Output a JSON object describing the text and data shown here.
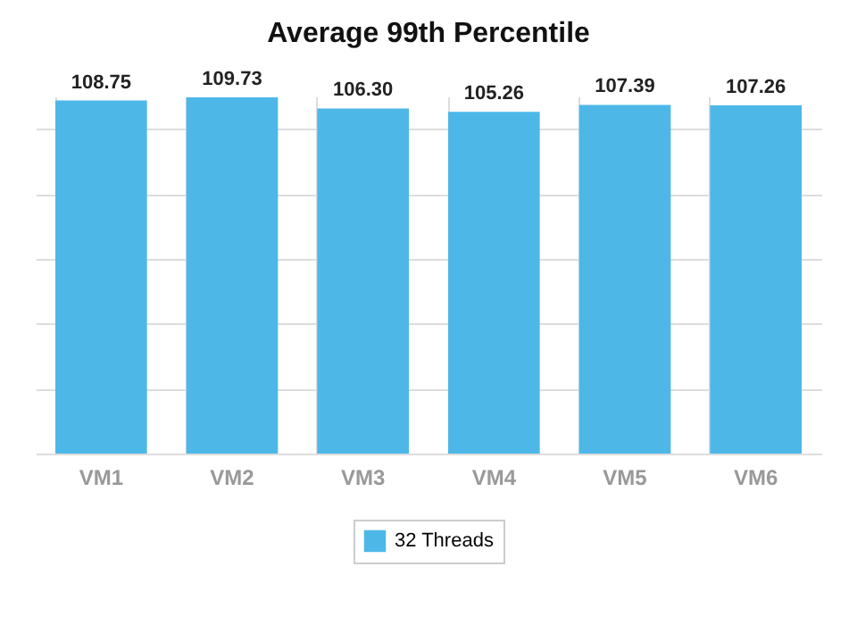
{
  "chart_data": {
    "type": "bar",
    "title": "Average 99th Percentile",
    "categories": [
      "VM1",
      "VM2",
      "VM3",
      "VM4",
      "VM5",
      "VM6"
    ],
    "series": [
      {
        "name": "32 Threads",
        "color": "#4db8e8",
        "values": [
          108.75,
          109.73,
          106.3,
          105.26,
          107.39,
          107.26
        ],
        "value_labels": [
          "108.75",
          "109.73",
          "106.30",
          "105.26",
          "107.39",
          "107.26"
        ]
      }
    ],
    "tick_labels": "x",
    "grid": true,
    "legend": "bottom"
  }
}
